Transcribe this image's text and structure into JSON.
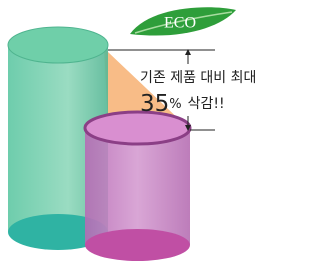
{
  "badge": "ECO",
  "caption": {
    "line1": "기존 제품 대비 최대",
    "number": "35",
    "unit": "%",
    "suffix": "삭감!!"
  }
}
